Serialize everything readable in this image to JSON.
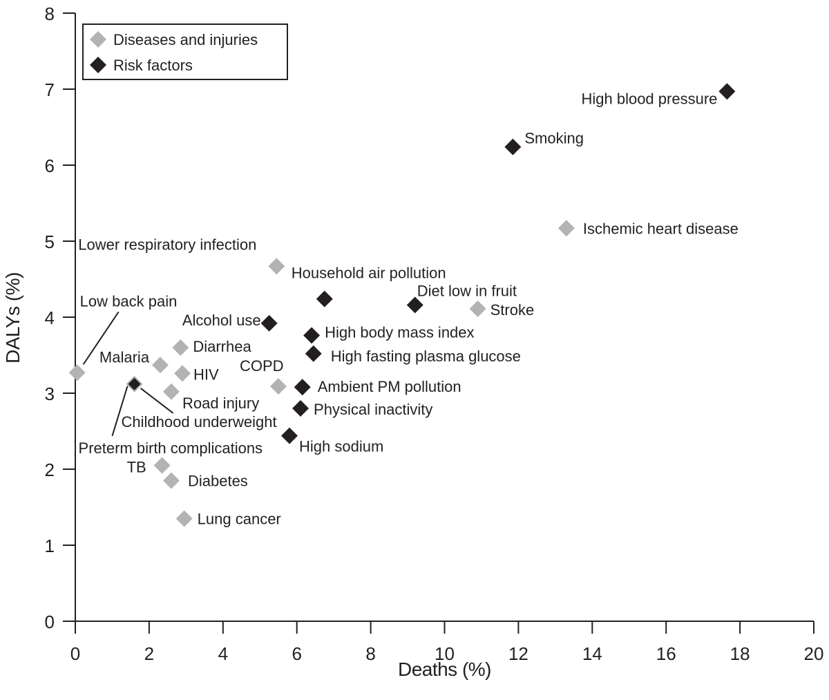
{
  "chart_data": {
    "type": "scatter",
    "title": "",
    "xlabel": "Deaths (%)",
    "ylabel": "DALYs (%)",
    "xlim": [
      0,
      20
    ],
    "ylim": [
      0,
      8
    ],
    "x_ticks": [
      "0",
      "2",
      "4",
      "6",
      "8",
      "10",
      "12",
      "14",
      "16",
      "18",
      "20"
    ],
    "y_ticks": [
      "0",
      "1",
      "2",
      "3",
      "4",
      "5",
      "6",
      "7",
      "8"
    ],
    "grid": false,
    "legend": {
      "position": "top-left",
      "entries": [
        {
          "name": "Diseases and injuries",
          "color": "#b3b3b3"
        },
        {
          "name": "Risk factors",
          "color": "#231f20"
        }
      ]
    },
    "series": [
      {
        "name": "Diseases and injuries",
        "color": "#b3b3b3",
        "points": [
          {
            "label": "Ischemic heart disease",
            "x": 13.3,
            "y": 5.17
          },
          {
            "label": "Stroke",
            "x": 10.9,
            "y": 4.11
          },
          {
            "label": "Lower respiratory infection",
            "x": 5.45,
            "y": 4.67
          },
          {
            "label": "COPD",
            "x": 5.5,
            "y": 3.09
          },
          {
            "label": "Low back pain",
            "x": 0.05,
            "y": 3.27
          },
          {
            "label": "Malaria",
            "x": 2.3,
            "y": 3.37
          },
          {
            "label": "Diarrhea",
            "x": 2.85,
            "y": 3.6
          },
          {
            "label": "HIV",
            "x": 2.9,
            "y": 3.26
          },
          {
            "label": "Road injury",
            "x": 2.6,
            "y": 3.02
          },
          {
            "label": "Preterm birth complications",
            "x": 1.6,
            "y": 3.12
          },
          {
            "label": "TB",
            "x": 2.35,
            "y": 2.05
          },
          {
            "label": "Diabetes",
            "x": 2.6,
            "y": 1.85
          },
          {
            "label": "Lung cancer",
            "x": 2.95,
            "y": 1.35
          }
        ]
      },
      {
        "name": "Risk factors",
        "color": "#231f20",
        "points": [
          {
            "label": "High blood pressure",
            "x": 17.65,
            "y": 6.97
          },
          {
            "label": "Smoking",
            "x": 11.85,
            "y": 6.24
          },
          {
            "label": "Household air pollution",
            "x": 6.75,
            "y": 4.24
          },
          {
            "label": "Diet low in fruit",
            "x": 9.2,
            "y": 4.16
          },
          {
            "label": "Alcohol use",
            "x": 5.25,
            "y": 3.92
          },
          {
            "label": "High body mass index",
            "x": 6.4,
            "y": 3.76
          },
          {
            "label": "High fasting plasma glucose",
            "x": 6.45,
            "y": 3.52
          },
          {
            "label": "Ambient PM pollution",
            "x": 6.15,
            "y": 3.08
          },
          {
            "label": "Physical inactivity",
            "x": 6.1,
            "y": 2.8
          },
          {
            "label": "High sodium",
            "x": 5.8,
            "y": 2.44
          },
          {
            "label": "Childhood underweight",
            "x": 1.6,
            "y": 3.12
          }
        ]
      }
    ]
  }
}
